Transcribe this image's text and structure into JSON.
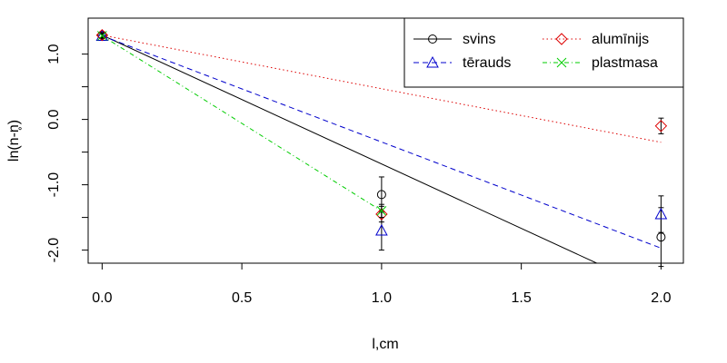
{
  "chart_data": {
    "type": "line",
    "xlabel": "l,cm",
    "ylabel": "ln(n-n̥)",
    "xlim": [
      -0.05,
      2.08
    ],
    "ylim": [
      -2.2,
      1.55
    ],
    "x_ticks": [
      0.0,
      0.5,
      1.0,
      1.5,
      2.0
    ],
    "x_tick_labels": [
      "0.0",
      "0.5",
      "1.0",
      "1.5",
      "2.0"
    ],
    "y_ticks": [
      -2.0,
      -1.5,
      -1.0,
      -0.5,
      0.0,
      0.5,
      1.0
    ],
    "y_tick_labels": [
      "-2.0",
      "",
      "-1.0",
      "",
      "0.0",
      "",
      "1.0"
    ],
    "grid": false,
    "legend": {
      "position": "top-right",
      "columns": 2
    },
    "series": [
      {
        "name": "svins",
        "color": "#000000",
        "dash": "solid",
        "marker": "circle",
        "points": [
          {
            "x": 0.0,
            "y": 1.29,
            "err": 0.04
          },
          {
            "x": 1.0,
            "y": -1.15,
            "err": 0.27
          },
          {
            "x": 2.0,
            "y": -1.8,
            "err": 0.45
          }
        ],
        "fit": {
          "x": [
            0.0,
            1.77
          ],
          "y": [
            1.29,
            -2.2
          ]
        }
      },
      {
        "name": "tērauds",
        "color": "#0000cc",
        "dash": "dashed",
        "marker": "triangle",
        "points": [
          {
            "x": 0.0,
            "y": 1.28,
            "err": 0.04
          },
          {
            "x": 1.0,
            "y": -1.7,
            "err": 0.3
          },
          {
            "x": 2.0,
            "y": -1.45,
            "err": 0.28
          }
        ],
        "fit": {
          "x": [
            0.0,
            2.0
          ],
          "y": [
            1.28,
            -1.97
          ]
        }
      },
      {
        "name": "alumīnijs",
        "color": "#dd0000",
        "dash": "dotted",
        "marker": "diamond",
        "points": [
          {
            "x": 0.0,
            "y": 1.29,
            "err": 0.04
          },
          {
            "x": 1.0,
            "y": -1.45,
            "err": 0.12
          },
          {
            "x": 2.0,
            "y": -0.1,
            "err": 0.12
          }
        ],
        "fit": {
          "x": [
            0.0,
            2.0
          ],
          "y": [
            1.29,
            -0.35
          ]
        }
      },
      {
        "name": "plastmasa",
        "color": "#00cc00",
        "dash": "dashdot",
        "marker": "x",
        "points": [
          {
            "x": 0.0,
            "y": 1.28,
            "err": 0.03
          },
          {
            "x": 1.0,
            "y": -1.4,
            "err": 0.1
          }
        ],
        "fit": {
          "x": [
            0.0,
            1.0
          ],
          "y": [
            1.28,
            -1.4
          ]
        }
      }
    ]
  }
}
